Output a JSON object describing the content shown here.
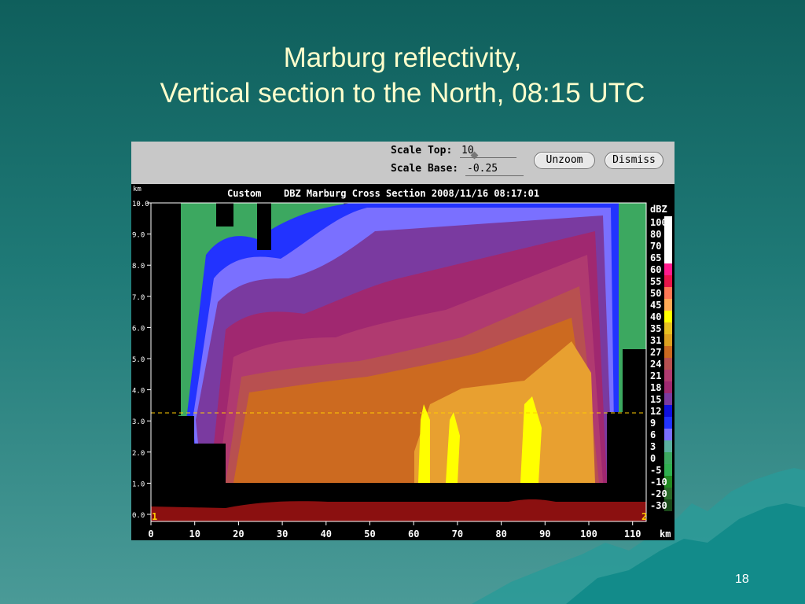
{
  "slide": {
    "title_line1": "Marburg reflectivity,",
    "title_line2": "Vertical section to the North, 08:15 UTC",
    "page_number": "18"
  },
  "toolbar": {
    "scale_top_label": "Scale Top:",
    "scale_top_value": "10",
    "scale_base_label": "Scale Base:",
    "scale_base_value": "-0.25",
    "unzoom_label": "Unzoom",
    "dismiss_label": "Dismiss"
  },
  "plot": {
    "header_left": "Custom",
    "header_title": "DBZ Marburg Cross Section 2008/11/16 08:17:01",
    "y_unit": "km",
    "x_unit": "km",
    "y_ticks": [
      "10.0",
      "9.0",
      "8.0",
      "7.0",
      "6.0",
      "5.0",
      "4.0",
      "3.0",
      "2.0",
      "1.0",
      "0.0"
    ],
    "x_ticks": [
      "0",
      "10",
      "20",
      "30",
      "40",
      "50",
      "60",
      "70",
      "80",
      "90",
      "100",
      "110"
    ],
    "marker_left": "1",
    "marker_right": "2"
  },
  "legend": {
    "title": "dBZ",
    "items": [
      {
        "label": "100",
        "color": "#ffffff"
      },
      {
        "label": "80",
        "color": "#ffffff"
      },
      {
        "label": "70",
        "color": "#ffffff"
      },
      {
        "label": "65",
        "color": "#ffffff"
      },
      {
        "label": "60",
        "color": "#ff1a8c"
      },
      {
        "label": "55",
        "color": "#e8144a"
      },
      {
        "label": "50",
        "color": "#ff7755"
      },
      {
        "label": "45",
        "color": "#ffaa55"
      },
      {
        "label": "40",
        "color": "#ffff00"
      },
      {
        "label": "35",
        "color": "#e8c020"
      },
      {
        "label": "31",
        "color": "#dda020"
      },
      {
        "label": "27",
        "color": "#cc6a20"
      },
      {
        "label": "24",
        "color": "#b85050"
      },
      {
        "label": "21",
        "color": "#b03a70"
      },
      {
        "label": "18",
        "color": "#a02870"
      },
      {
        "label": "15",
        "color": "#7a3aa0"
      },
      {
        "label": "12",
        "color": "#1010e0"
      },
      {
        "label": "9",
        "color": "#2233ff"
      },
      {
        "label": "6",
        "color": "#7a70ff"
      },
      {
        "label": "3",
        "color": "#5ab0a0"
      },
      {
        "label": "0",
        "color": "#3ca860"
      },
      {
        "label": "-5",
        "color": "#30b050"
      },
      {
        "label": "-10",
        "color": "#228a22"
      },
      {
        "label": "-20",
        "color": "#2a6a2a"
      },
      {
        "label": "-30",
        "color": "#1a4a1a"
      }
    ]
  }
}
